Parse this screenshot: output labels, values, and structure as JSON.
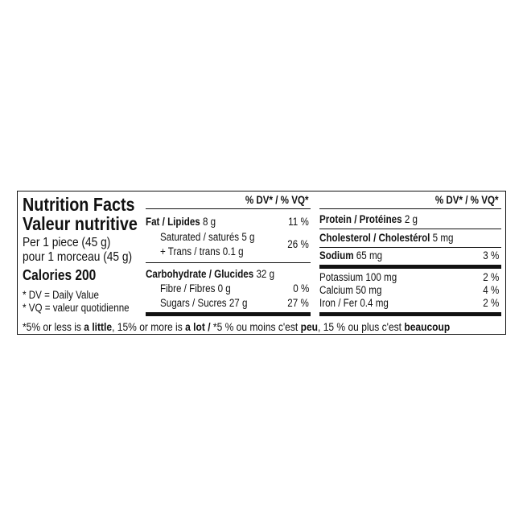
{
  "title_en": "Nutrition Facts",
  "title_fr": "Valeur nutritive",
  "serving_en": "Per 1 piece (45 g)",
  "serving_fr": "pour 1 morceau (45 g)",
  "calories": "Calories 200",
  "dv_note": "* DV = Daily Value",
  "vq_note": "* VQ = valeur quotidienne",
  "dv_header": "% DV* / % VQ*",
  "middle": {
    "fat": {
      "label": "Fat / Lipides",
      "amount": "8 g",
      "dv": "11 %"
    },
    "saturated": {
      "label": "Saturated / saturés 5 g"
    },
    "trans": {
      "label": "+ Trans / trans 0.1 g"
    },
    "sat_trans_dv": "26 %",
    "carb": {
      "label": "Carbohydrate / Glucides",
      "amount": "32 g"
    },
    "fibre": {
      "label": "Fibre / Fibres 0 g",
      "dv": "0 %"
    },
    "sugars": {
      "label": "Sugars / Sucres 27 g",
      "dv": "27 %"
    }
  },
  "right": {
    "protein": {
      "label": "Protein / Protéines",
      "amount": "2 g"
    },
    "cholesterol": {
      "label": "Cholesterol / Cholestérol",
      "amount": "5 mg"
    },
    "sodium": {
      "label": "Sodium",
      "amount": "65 mg",
      "dv": "3 %"
    },
    "potassium": {
      "label": "Potassium 100 mg",
      "dv": "2 %"
    },
    "calcium": {
      "label": "Calcium 50 mg",
      "dv": "4 %"
    },
    "iron": {
      "label": "Iron / Fer 0.4 mg",
      "dv": "2 %"
    }
  },
  "footnote": {
    "p1": "*5% or less is ",
    "b1": "a little",
    "p2": ", 15% or more is ",
    "b2": "a lot / ",
    "p3": "*5 % ou moins c'est ",
    "b3": "peu",
    "p4": ", 15 % ou plus c'est ",
    "b4": "beaucoup"
  }
}
